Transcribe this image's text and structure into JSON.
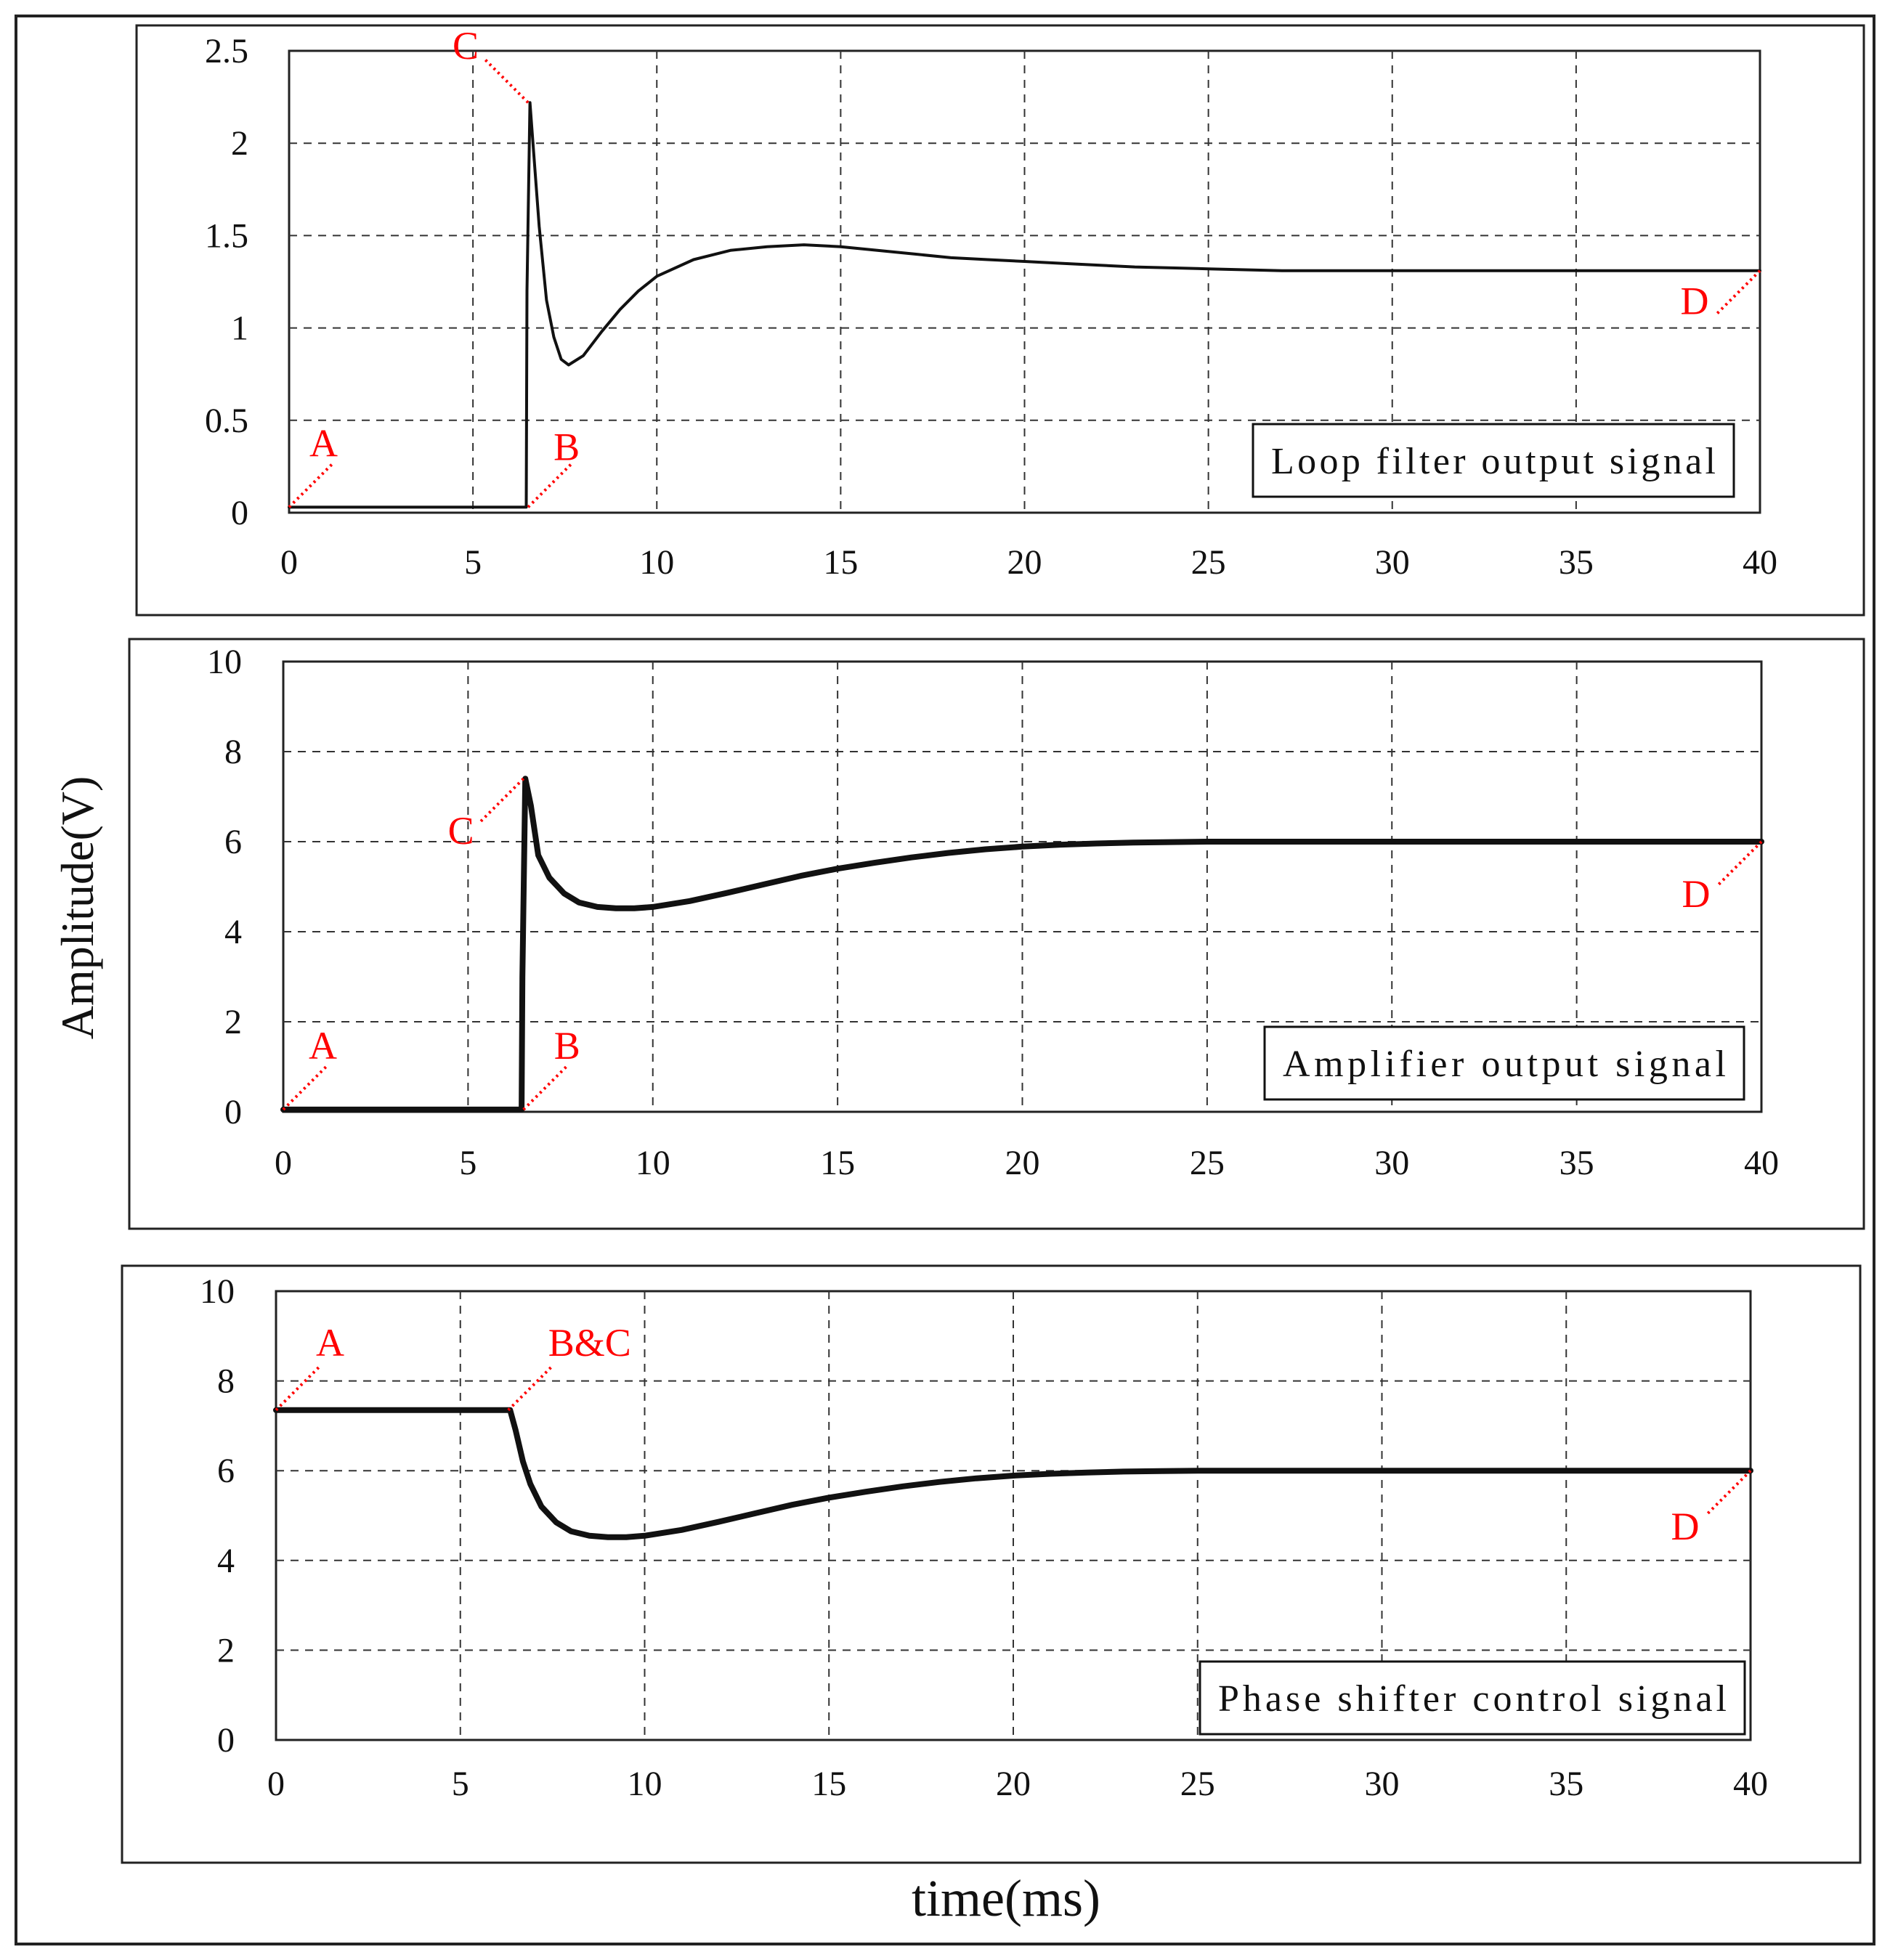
{
  "figure": {
    "ylabel": "Amplitude(V)",
    "xlabel": "time(ms)"
  },
  "chart_data": [
    {
      "type": "line",
      "legend": "Loop filter output signal",
      "xlim": [
        0,
        40
      ],
      "ylim": [
        0,
        2.5
      ],
      "xticks": [
        "0",
        "5",
        "10",
        "15",
        "20",
        "25",
        "30",
        "35",
        "40"
      ],
      "yticks": [
        "0",
        "0.5",
        "1",
        "1.5",
        "2",
        "2.5"
      ],
      "series": [
        {
          "name": "Loop filter output signal",
          "x": [
            0,
            1,
            2,
            3,
            4,
            5,
            6,
            6.45,
            6.47,
            6.55,
            6.65,
            6.8,
            7.0,
            7.2,
            7.4,
            7.6,
            8.0,
            8.5,
            9.0,
            9.5,
            10,
            11,
            12,
            13,
            14,
            15,
            16,
            17,
            18,
            19,
            20,
            21,
            22,
            23,
            24,
            25,
            26,
            27,
            28,
            29,
            30,
            31,
            32,
            33,
            34,
            35,
            36,
            37,
            38,
            39,
            40
          ],
          "values": [
            0.03,
            0.03,
            0.03,
            0.03,
            0.03,
            0.03,
            0.03,
            0.03,
            1.2,
            2.22,
            1.95,
            1.55,
            1.15,
            0.95,
            0.83,
            0.8,
            0.85,
            0.98,
            1.1,
            1.2,
            1.28,
            1.37,
            1.42,
            1.44,
            1.45,
            1.44,
            1.42,
            1.4,
            1.38,
            1.37,
            1.36,
            1.35,
            1.34,
            1.33,
            1.325,
            1.32,
            1.315,
            1.31,
            1.31,
            1.31,
            1.31,
            1.31,
            1.31,
            1.31,
            1.31,
            1.31,
            1.31,
            1.31,
            1.31,
            1.31,
            1.31
          ]
        }
      ],
      "annotations": [
        {
          "label": "A",
          "x": 0,
          "y": 0.03
        },
        {
          "label": "B",
          "x": 6.5,
          "y": 0.03
        },
        {
          "label": "C",
          "x": 6.5,
          "y": 2.22
        },
        {
          "label": "D",
          "x": 40,
          "y": 1.31
        }
      ]
    },
    {
      "type": "line",
      "legend": "Amplifier output signal",
      "xlim": [
        0,
        40
      ],
      "ylim": [
        0,
        10
      ],
      "xticks": [
        "0",
        "5",
        "10",
        "15",
        "20",
        "25",
        "30",
        "35",
        "40"
      ],
      "yticks": [
        "0",
        "2",
        "4",
        "6",
        "8",
        "10"
      ],
      "series": [
        {
          "name": "Amplifier output signal",
          "x": [
            0,
            1,
            2,
            3,
            4,
            5,
            6,
            6.45,
            6.47,
            6.55,
            6.7,
            6.9,
            7.2,
            7.6,
            8.0,
            8.5,
            9.0,
            9.5,
            10,
            11,
            12,
            13,
            14,
            15,
            16,
            17,
            18,
            19,
            20,
            21,
            22,
            23,
            24,
            25,
            26,
            28,
            30,
            32,
            34,
            36,
            38,
            40
          ],
          "values": [
            0.05,
            0.05,
            0.05,
            0.05,
            0.05,
            0.05,
            0.05,
            0.05,
            3.0,
            7.4,
            6.8,
            5.7,
            5.2,
            4.85,
            4.65,
            4.55,
            4.52,
            4.52,
            4.55,
            4.68,
            4.86,
            5.05,
            5.24,
            5.4,
            5.53,
            5.65,
            5.75,
            5.83,
            5.89,
            5.93,
            5.96,
            5.98,
            5.99,
            6.0,
            6.0,
            6.0,
            6.0,
            6.0,
            6.0,
            6.0,
            6.0,
            6.0
          ]
        }
      ],
      "annotations": [
        {
          "label": "A",
          "x": 0,
          "y": 0.05
        },
        {
          "label": "B",
          "x": 6.5,
          "y": 0.05
        },
        {
          "label": "C",
          "x": 6.5,
          "y": 7.4
        },
        {
          "label": "D",
          "x": 40,
          "y": 6.0
        }
      ]
    },
    {
      "type": "line",
      "legend": "Phase shifter control signal",
      "xlim": [
        0,
        40
      ],
      "ylim": [
        0,
        10
      ],
      "xticks": [
        "0",
        "5",
        "10",
        "15",
        "20",
        "25",
        "30",
        "35",
        "40"
      ],
      "yticks": [
        "0",
        "2",
        "4",
        "6",
        "8",
        "10"
      ],
      "series": [
        {
          "name": "Phase shifter control signal",
          "x": [
            0,
            1,
            2,
            3,
            4,
            5,
            6,
            6.35,
            6.5,
            6.7,
            6.9,
            7.2,
            7.6,
            8.0,
            8.5,
            9.0,
            9.5,
            10,
            11,
            12,
            13,
            14,
            15,
            16,
            17,
            18,
            19,
            20,
            21,
            22,
            23,
            24,
            25,
            26,
            28,
            30,
            32,
            34,
            36,
            38,
            40
          ],
          "values": [
            7.35,
            7.35,
            7.35,
            7.35,
            7.35,
            7.35,
            7.35,
            7.35,
            6.9,
            6.2,
            5.7,
            5.2,
            4.85,
            4.65,
            4.55,
            4.52,
            4.52,
            4.55,
            4.68,
            4.86,
            5.05,
            5.24,
            5.4,
            5.53,
            5.65,
            5.75,
            5.83,
            5.89,
            5.93,
            5.96,
            5.98,
            5.99,
            6.0,
            6.0,
            6.0,
            6.0,
            6.0,
            6.0,
            6.0,
            6.0,
            6.0
          ]
        }
      ],
      "annotations": [
        {
          "label": "A",
          "x": 0,
          "y": 7.35
        },
        {
          "label": "B&C",
          "x": 6.3,
          "y": 7.35
        },
        {
          "label": "D",
          "x": 40,
          "y": 6.0
        }
      ]
    }
  ]
}
